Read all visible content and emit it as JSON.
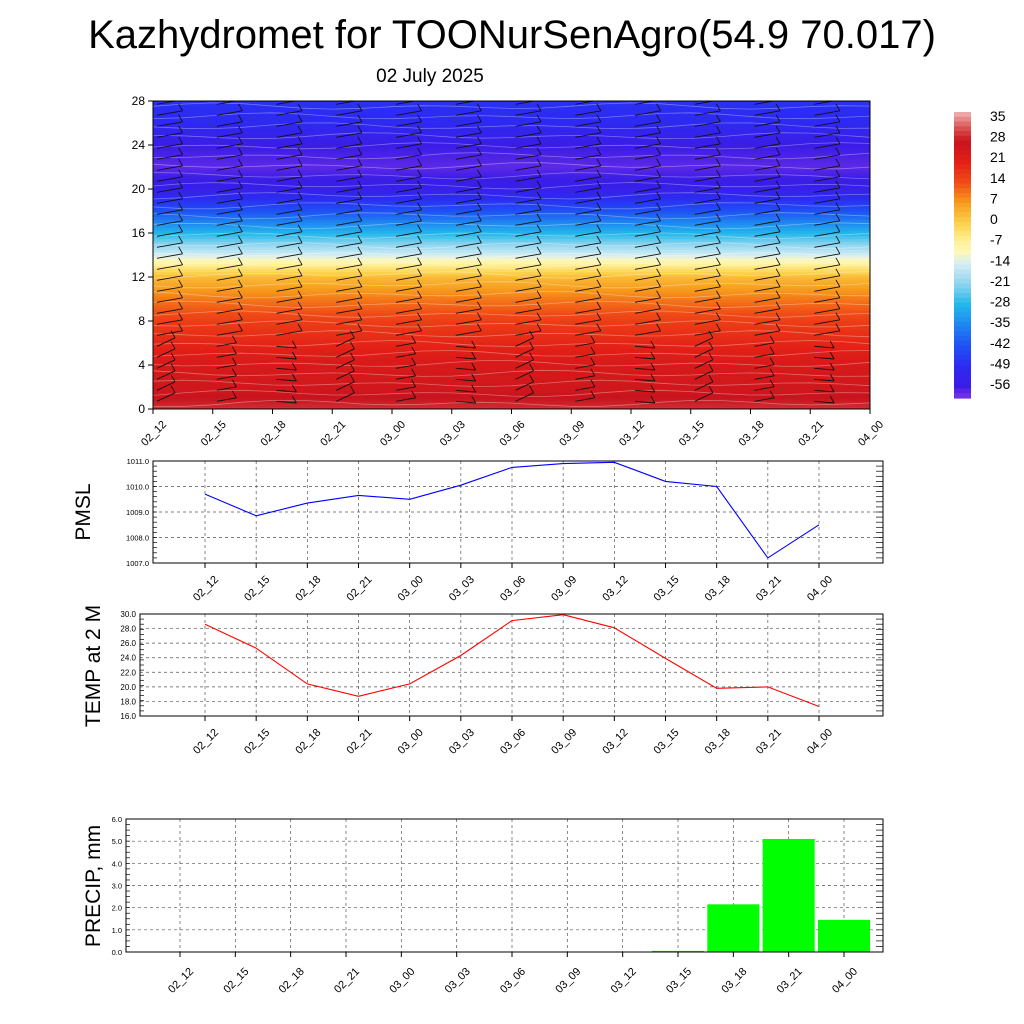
{
  "title": "Kazhydromet for TOONurSenAgro(54.9 70.017)",
  "subtitle": "02 July 2025",
  "time_labels": [
    "02_12",
    "02_15",
    "02_18",
    "02_21",
    "03_00",
    "03_03",
    "03_06",
    "03_09",
    "03_12",
    "03_15",
    "03_18",
    "03_21",
    "04_00"
  ],
  "colorbar": {
    "labels": [
      "35",
      "28",
      "21",
      "14",
      "7",
      "0",
      "-7",
      "-14",
      "-21",
      "-28",
      "-35",
      "-42",
      "-49",
      "-56"
    ]
  },
  "chart_data": [
    {
      "type": "heatmap",
      "title": "",
      "xlabel": "",
      "ylabel": "",
      "x": [
        "02_12",
        "02_15",
        "02_18",
        "02_21",
        "03_00",
        "03_03",
        "03_06",
        "03_09",
        "03_12",
        "03_15",
        "03_18",
        "03_21",
        "04_00"
      ],
      "yticks": [
        "0",
        "4",
        "8",
        "12",
        "16",
        "20",
        "24",
        "28"
      ],
      "ylim": [
        0,
        28
      ],
      "zlim": [
        -56,
        35
      ],
      "value_profile": {
        "y": [
          0,
          2,
          4,
          6,
          8,
          10,
          12,
          13,
          14,
          16,
          18,
          20,
          22,
          24,
          26,
          28
        ],
        "z": [
          30,
          26,
          24,
          20,
          16,
          10,
          3,
          -5,
          -14,
          -28,
          -42,
          -54,
          -58,
          -56,
          -50,
          -48
        ]
      },
      "wind_barbs": true,
      "colors": {
        "low": "#3b1ce6",
        "mid": "#fff1a0",
        "high": "#c8141e"
      }
    },
    {
      "type": "line",
      "title": "",
      "xlabel": "",
      "ylabel": "PMSL",
      "x": [
        "02_12",
        "02_15",
        "02_18",
        "02_21",
        "03_00",
        "03_03",
        "03_06",
        "03_09",
        "03_12",
        "03_15",
        "03_18",
        "03_21",
        "04_00"
      ],
      "series": [
        {
          "values": [
            1009.7,
            1008.85,
            1009.35,
            1009.65,
            1009.5,
            1010.05,
            1010.75,
            1010.9,
            1010.95,
            1010.2,
            1010.0,
            1007.2,
            1008.5
          ]
        }
      ],
      "yticks": [
        "1007.0",
        "1008.0",
        "1009.0",
        "1010.0",
        "1011.0"
      ],
      "ylim": [
        1007,
        1011
      ],
      "grid": true,
      "colors": {
        "line": "#0000ff"
      }
    },
    {
      "type": "line",
      "title": "",
      "xlabel": "",
      "ylabel": "TEMP at 2 M",
      "x": [
        "02_12",
        "02_15",
        "02_18",
        "02_21",
        "03_00",
        "03_03",
        "03_06",
        "03_09",
        "03_12",
        "03_15",
        "03_18",
        "03_21",
        "04_00"
      ],
      "series": [
        {
          "values": [
            28.6,
            25.3,
            20.4,
            18.7,
            20.4,
            24.3,
            29.1,
            29.9,
            28.1,
            23.9,
            19.8,
            20.0,
            17.3
          ]
        }
      ],
      "yticks": [
        "16.0",
        "18.0",
        "20.0",
        "22.0",
        "24.0",
        "26.0",
        "28.0",
        "30.0"
      ],
      "ylim": [
        16,
        30
      ],
      "grid": true,
      "colors": {
        "line": "#ff0000"
      }
    },
    {
      "type": "bar",
      "title": "",
      "xlabel": "",
      "ylabel": "PRECIP, mm",
      "categories": [
        "02_12",
        "02_15",
        "02_18",
        "02_21",
        "03_00",
        "03_03",
        "03_06",
        "03_09",
        "03_12",
        "03_15",
        "03_18",
        "03_21",
        "04_00"
      ],
      "values": [
        0,
        0,
        0,
        0,
        0,
        0,
        0,
        0,
        0,
        0.05,
        2.15,
        5.1,
        1.45
      ],
      "yticks": [
        "0.0",
        "1.0",
        "2.0",
        "3.0",
        "4.0",
        "5.0",
        "6.0"
      ],
      "ylim": [
        0,
        6
      ],
      "grid": true,
      "colors": {
        "bar": "#00ff00"
      }
    }
  ]
}
